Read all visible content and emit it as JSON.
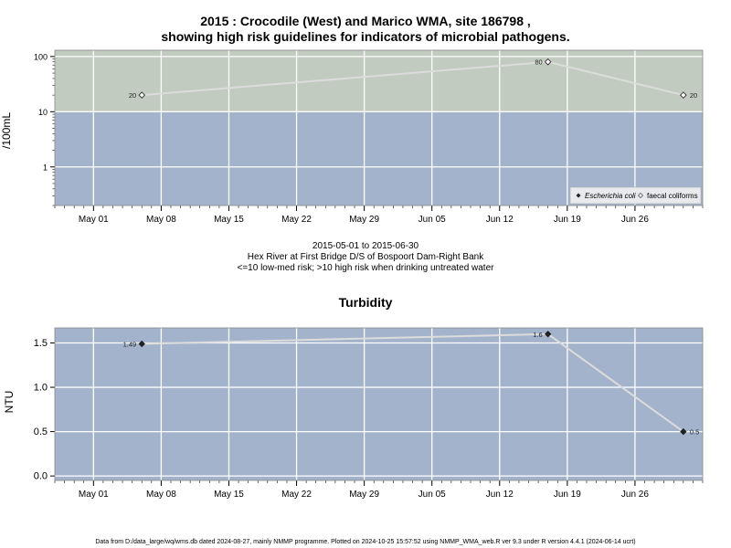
{
  "main_title_line1": "2015 : Crocodile (West) and Marico WMA, site 186798 ,",
  "main_title_line2": "showing high risk guidelines for indicators of microbial pathogens.",
  "period": "2015-05-01 to 2015-06-30",
  "site_name": "Hex River at First Bridge D/S of Bospoort Dam-Right Bank",
  "risk_note": "<=10 low-med risk; >10 high risk when drinking untreated water",
  "footer": "Data from D:/data_large/wq/wms.db dated 2024-08-27, mainly NMMP programme. Plotted on 2024-10-25 15:57:52 using NMMP_WMA_web.R ver 9.3 under R version 4.4.1 (2024-06-14 ucrt)",
  "colors": {
    "high_risk_band": "#c2cbc0",
    "low_risk_band": "#a2b3cb",
    "turbidity_bg": "#a2b3cb",
    "line": "#dcdcdc",
    "grid": "#ffffff"
  },
  "chart_data": [
    {
      "type": "line",
      "ylabel": "/100mL",
      "y_scale": "log",
      "ylim": [
        0.2,
        130
      ],
      "xlim": [
        "2015-04-27",
        "2015-07-03"
      ],
      "x_ticks": [
        "May 01",
        "May 08",
        "May 15",
        "May 22",
        "May 29",
        "Jun 05",
        "Jun 12",
        "Jun 19",
        "Jun 26"
      ],
      "y_ticks": [
        "1",
        "10",
        "100"
      ],
      "threshold": 10,
      "legend_position": "bottom-right",
      "legend": [
        "Escherichia coli",
        "faecal coliforms"
      ],
      "series": [
        {
          "name": "faecal coliforms",
          "marker": "open-diamond",
          "points": [
            {
              "x": "2015-05-06",
              "y": 20,
              "label": "20",
              "label_side": "left"
            },
            {
              "x": "2015-06-17",
              "y": 80,
              "label": "80",
              "label_side": "left"
            },
            {
              "x": "2015-07-01",
              "y": 20,
              "label": "20",
              "label_side": "right"
            }
          ]
        }
      ]
    },
    {
      "type": "line",
      "title": "Turbidity",
      "ylabel": "NTU",
      "ylim": [
        -0.05,
        1.67
      ],
      "xlim": [
        "2015-04-27",
        "2015-07-03"
      ],
      "x_ticks": [
        "May 01",
        "May 08",
        "May 15",
        "May 22",
        "May 29",
        "Jun 05",
        "Jun 12",
        "Jun 19",
        "Jun 26"
      ],
      "y_ticks": [
        "0.0",
        "0.5",
        "1.0",
        "1.5"
      ],
      "series": [
        {
          "marker": "filled-diamond",
          "points": [
            {
              "x": "2015-05-06",
              "y": 1.49,
              "label": "1.49",
              "label_side": "left"
            },
            {
              "x": "2015-06-17",
              "y": 1.6,
              "label": "1.6",
              "label_side": "left"
            },
            {
              "x": "2015-07-01",
              "y": 0.5,
              "label": "0.5",
              "label_side": "right"
            }
          ]
        }
      ]
    }
  ]
}
